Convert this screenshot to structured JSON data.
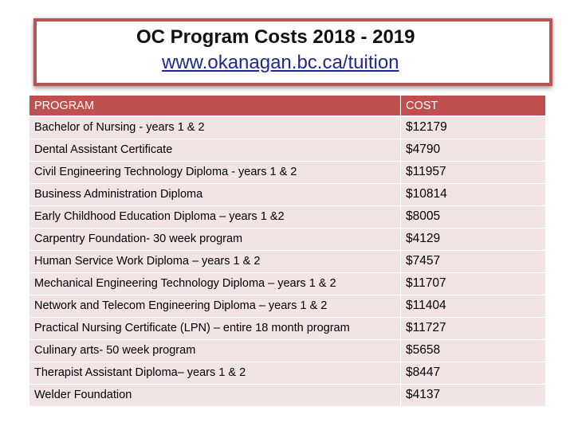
{
  "header": {
    "title": "OC Program Costs 2018 - 2019",
    "url_text": "www.okanagan.bc.ca/tuition"
  },
  "table": {
    "columns": [
      "PROGRAM",
      "COST"
    ],
    "rows": [
      {
        "program": "Bachelor of Nursing  - years 1 & 2",
        "cost": "$12179"
      },
      {
        "program": "Dental Assistant Certificate",
        "cost": "$4790"
      },
      {
        "program": "Civil Engineering Technology Diploma  - years 1 & 2",
        "cost": "$11957"
      },
      {
        "program": "Business Administration Diploma",
        "cost": "$10814"
      },
      {
        "program": "Early Childhood Education Diploma – years 1 &2",
        "cost": "$8005"
      },
      {
        "program": "Carpentry Foundation- 30 week program",
        "cost": "$4129"
      },
      {
        "program": "Human Service Work Diploma – years 1 & 2",
        "cost": "$7457"
      },
      {
        "program": "Mechanical Engineering Technology Diploma – years 1 & 2",
        "cost": "$11707"
      },
      {
        "program": "Network and Telecom Engineering Diploma – years 1 & 2",
        "cost": "$11404"
      },
      {
        "program": "Practical Nursing Certificate (LPN) – entire 18 month program",
        "cost": "$11727"
      },
      {
        "program": "Culinary arts- 50 week program",
        "cost": "$5658"
      },
      {
        "program": "Therapist Assistant Diploma– years 1 & 2",
        "cost": "$8447"
      },
      {
        "program": "Welder Foundation",
        "cost": "$4137"
      }
    ]
  },
  "colors": {
    "accent_border": "#b85454",
    "header_fill": "#c0504d",
    "row_fill": "#f2e4e4",
    "link": "#1f2a8a"
  }
}
